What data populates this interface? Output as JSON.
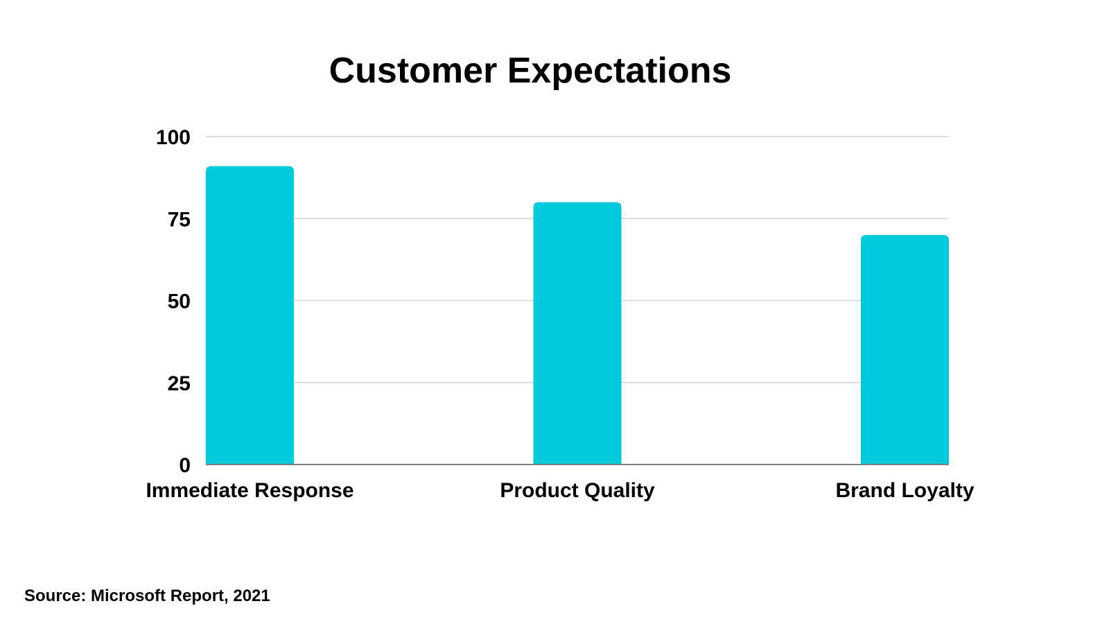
{
  "chart_data": {
    "type": "bar",
    "title": "Customer Expectations",
    "categories": [
      "Immediate Response",
      "Product Quality",
      "Brand Loyalty"
    ],
    "values": [
      91,
      80,
      70
    ],
    "xlabel": "",
    "ylabel": "",
    "ylim": [
      0,
      100
    ],
    "yticks": [
      "0",
      "25",
      "50",
      "75",
      "100"
    ],
    "grid": true,
    "bar_color": "#00c9db",
    "grid_color": "#d0d0d0",
    "axis_color": "#808080"
  },
  "source": "Source: Microsoft Report, 2021"
}
